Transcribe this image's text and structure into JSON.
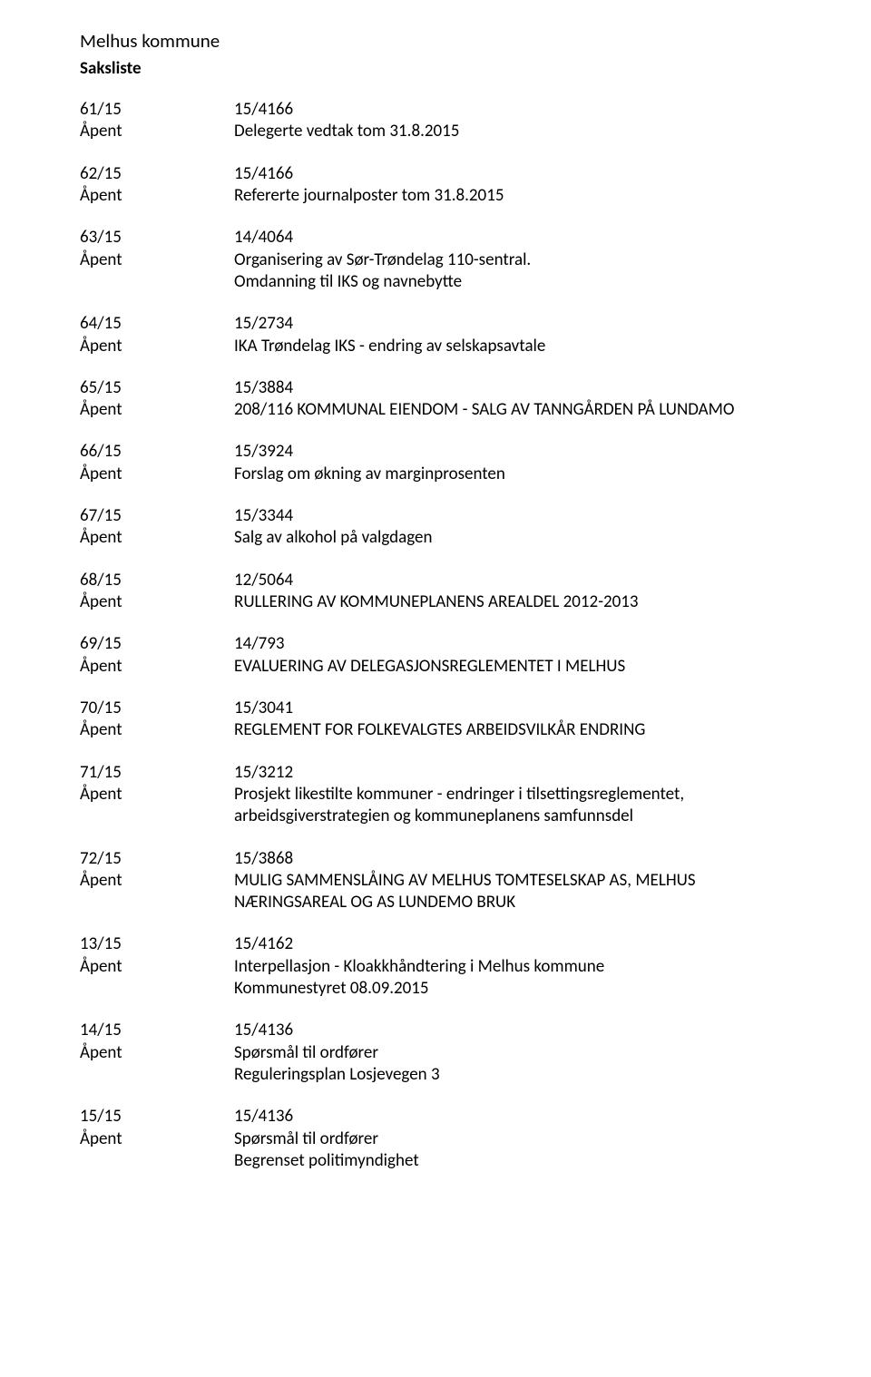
{
  "org": "Melhus kommune",
  "list_title": "Saksliste",
  "labels": {
    "access": "Åpent"
  },
  "items": [
    {
      "case_no": "61/15",
      "ref_no": "15/4166",
      "description_lines": [
        "Delegerte vedtak tom 31.8.2015"
      ]
    },
    {
      "case_no": "62/15",
      "ref_no": "15/4166",
      "description_lines": [
        "Refererte journalposter tom 31.8.2015"
      ]
    },
    {
      "case_no": "63/15",
      "ref_no": "14/4064",
      "description_lines": [
        "Organisering av Sør-Trøndelag 110-sentral.",
        "Omdanning til IKS og navnebytte"
      ]
    },
    {
      "case_no": "64/15",
      "ref_no": "15/2734",
      "description_lines": [
        "IKA Trøndelag IKS - endring av selskapsavtale"
      ]
    },
    {
      "case_no": "65/15",
      "ref_no": "15/3884",
      "description_lines": [
        "208/116 KOMMUNAL EIENDOM - SALG AV TANNGÅRDEN PÅ LUNDAMO"
      ]
    },
    {
      "case_no": "66/15",
      "ref_no": "15/3924",
      "description_lines": [
        "Forslag om økning av marginprosenten"
      ]
    },
    {
      "case_no": "67/15",
      "ref_no": "15/3344",
      "description_lines": [
        "Salg av alkohol på valgdagen"
      ]
    },
    {
      "case_no": "68/15",
      "ref_no": "12/5064",
      "description_lines": [
        "RULLERING AV KOMMUNEPLANENS AREALDEL 2012-2013"
      ]
    },
    {
      "case_no": "69/15",
      "ref_no": "14/793",
      "description_lines": [
        "EVALUERING AV DELEGASJONSREGLEMENTET I MELHUS"
      ]
    },
    {
      "case_no": "70/15",
      "ref_no": "15/3041",
      "description_lines": [
        "REGLEMENT FOR FOLKEVALGTES ARBEIDSVILKÅR ENDRING"
      ]
    },
    {
      "case_no": "71/15",
      "ref_no": "15/3212",
      "description_lines": [
        "Prosjekt likestilte kommuner - endringer i tilsettingsreglementet,",
        "arbeidsgiverstrategien og kommuneplanens samfunnsdel"
      ]
    },
    {
      "case_no": "72/15",
      "ref_no": "15/3868",
      "description_lines": [
        "MULIG SAMMENSLÅING AV MELHUS TOMTESELSKAP AS, MELHUS",
        "NÆRINGSAREAL OG AS LUNDEMO BRUK"
      ]
    },
    {
      "case_no": "13/15",
      "ref_no": "15/4162",
      "description_lines": [
        "Interpellasjon - Kloakkhåndtering i Melhus kommune",
        "Kommunestyret 08.09.2015"
      ]
    },
    {
      "case_no": "14/15",
      "ref_no": "15/4136",
      "description_lines": [
        "Spørsmål til ordfører",
        "Reguleringsplan Losjevegen 3"
      ]
    },
    {
      "case_no": "15/15",
      "ref_no": "15/4136",
      "description_lines": [
        "Spørsmål til ordfører",
        "Begrenset politimyndighet"
      ]
    }
  ]
}
